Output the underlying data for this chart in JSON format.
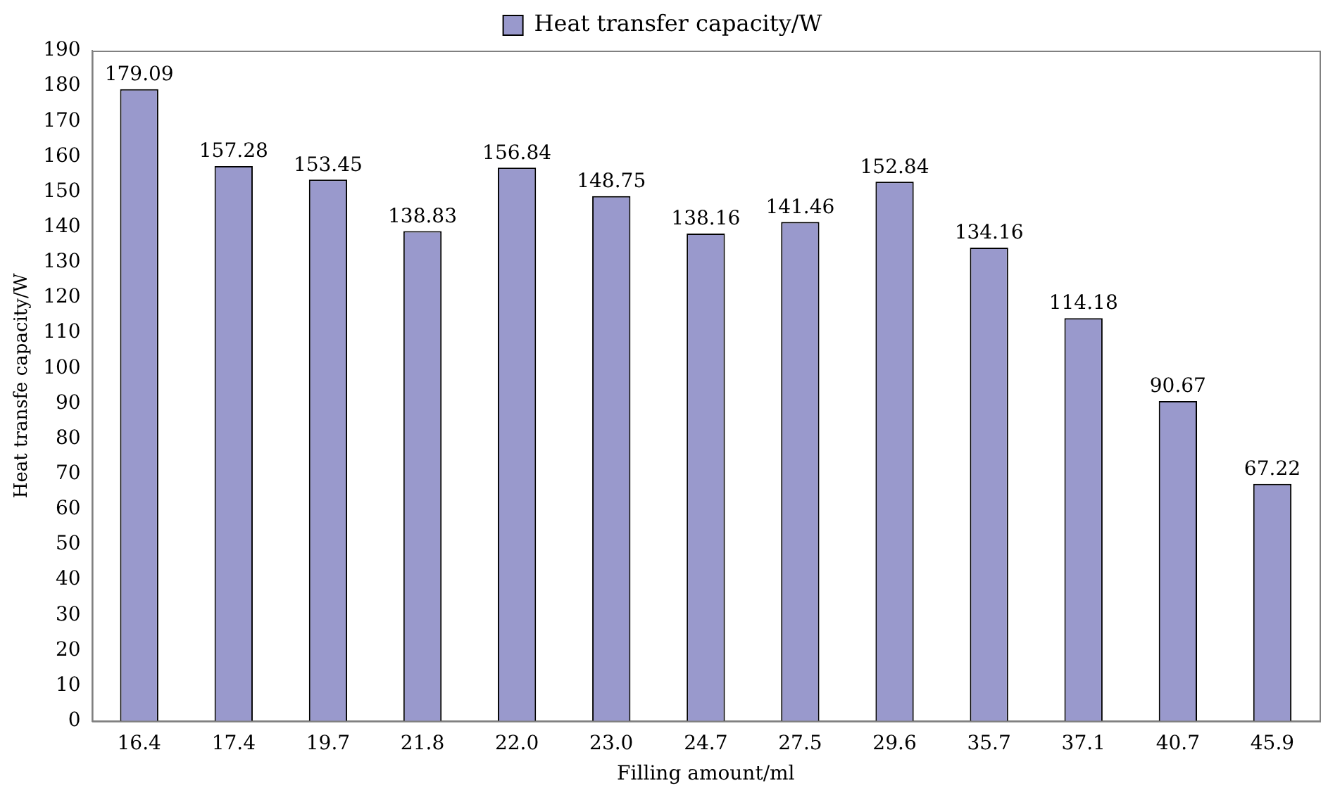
{
  "chart_data": {
    "type": "bar",
    "xlabel": "Filling amount/ml",
    "ylabel": "Heat transfe capacity/W",
    "categories": [
      "16.4",
      "17.4",
      "19.7",
      "21.8",
      "22.0",
      "23.0",
      "24.7",
      "27.5",
      "29.6",
      "35.7",
      "37.1",
      "40.7",
      "45.9"
    ],
    "series": [
      {
        "name": "Heat transfer capacity/W",
        "color": "#9999cc",
        "values": [
          179.09,
          157.28,
          153.45,
          138.83,
          156.84,
          148.75,
          138.16,
          141.46,
          152.84,
          134.16,
          114.18,
          90.67,
          67.22
        ]
      }
    ],
    "ylim": [
      0,
      190
    ],
    "yticks": [
      0,
      10,
      20,
      30,
      40,
      50,
      60,
      70,
      80,
      90,
      100,
      110,
      120,
      130,
      140,
      150,
      160,
      170,
      180,
      190
    ],
    "grid": false,
    "legend": "top",
    "data_labels": true
  }
}
